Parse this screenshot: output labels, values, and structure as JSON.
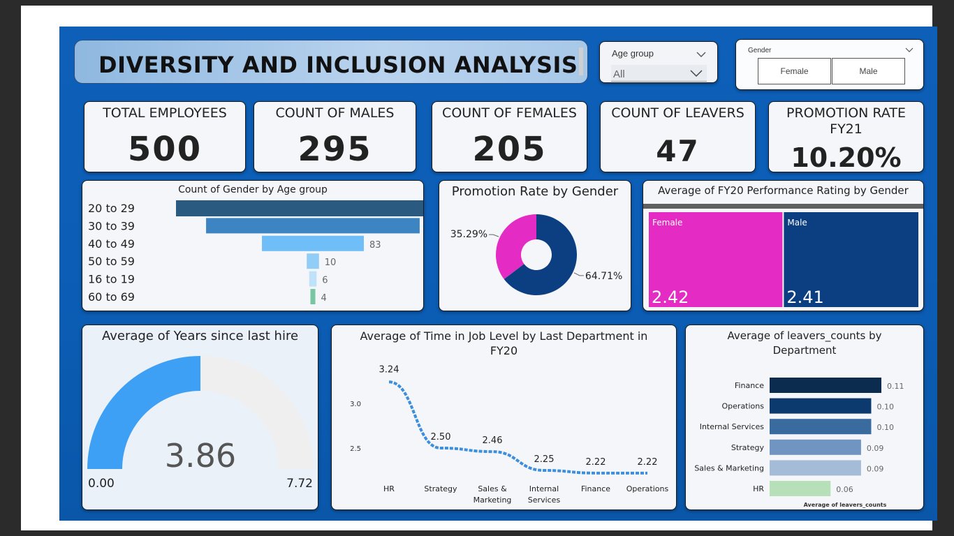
{
  "header": {
    "title": "DIVERSITY AND INCLUSION ANALYSIS"
  },
  "filters": {
    "age_group": {
      "label": "Age group",
      "value": "All"
    },
    "gender": {
      "label": "Gender",
      "options": [
        "Female",
        "Male"
      ]
    }
  },
  "kpis": {
    "total_employees": {
      "title": "TOTAL EMPLOYEES",
      "value": "500"
    },
    "count_males": {
      "title": "COUNT OF MALES",
      "value": "295"
    },
    "count_females": {
      "title": "COUNT OF FEMALES",
      "value": "205"
    },
    "count_leavers": {
      "title": "COUNT OF LEAVERS",
      "value": "47"
    },
    "promotion_rate": {
      "title_line1": "PROMOTION RATE",
      "title_line2": "FY21",
      "value": "10.20%"
    }
  },
  "colors": {
    "background": "#0b5db5",
    "female": "#e42bc3",
    "male": "#0b3f82",
    "gauge_fill": "#3da0f5",
    "gauge_track": "#efefef"
  },
  "chart_data": [
    {
      "type": "bar",
      "orientation": "horizontal-funnel",
      "title": "Count of Gender by Age group",
      "categories": [
        "20 to 29",
        "30 to 39",
        "40 to 49",
        "50 to 59",
        "16 to 19",
        "60 to 69"
      ],
      "values": [
        223,
        174,
        83,
        10,
        6,
        4
      ],
      "value_labels": [
        "",
        "174",
        "83",
        "10",
        "6",
        "4"
      ],
      "colors": [
        "#2b5a80",
        "#3d85c2",
        "#6fbef7",
        "#91cdf7",
        "#bfe1fa",
        "#79c6a3"
      ]
    },
    {
      "type": "pie",
      "variant": "donut",
      "title": "Promotion Rate by Gender",
      "categories": [
        "Female",
        "Male"
      ],
      "values": [
        35.29,
        64.71
      ],
      "labels": [
        "35.29%",
        "64.71%"
      ],
      "colors": [
        "#e42bc3",
        "#0b3f82"
      ]
    },
    {
      "type": "heatmap",
      "variant": "treemap",
      "title": "Average of FY20 Performance Rating by Gender",
      "categories": [
        "Female",
        "Male"
      ],
      "values": [
        2.42,
        2.41
      ],
      "colors": [
        "#e42bc3",
        "#0b3f82"
      ]
    },
    {
      "type": "gauge",
      "title": "Average of Years since last hire",
      "value": 3.86,
      "value_label": "3.86",
      "min": 0,
      "max": 7.72,
      "min_label": "0.00",
      "max_label": "7.72"
    },
    {
      "type": "line",
      "title": "Average of Time in Job Level by Last Department in FY20",
      "categories": [
        "HR",
        "Strategy",
        "Sales & Marketing",
        "Internal Services",
        "Finance",
        "Operations"
      ],
      "category_lines": [
        [
          "HR"
        ],
        [
          "Strategy"
        ],
        [
          "Sales &",
          "Marketing"
        ],
        [
          "Internal",
          "Services"
        ],
        [
          "Finance"
        ],
        [
          "Operations"
        ]
      ],
      "values": [
        3.24,
        2.5,
        2.46,
        2.25,
        2.22,
        2.22
      ],
      "value_labels": [
        "3.24",
        "2.50",
        "2.46",
        "2.25",
        "2.22",
        "2.22"
      ],
      "yticks": [
        "3.0",
        "2.5"
      ],
      "ytick_values": [
        3.0,
        2.5
      ],
      "ylim": [
        2.22,
        3.24
      ],
      "color": "#3d8fdb"
    },
    {
      "type": "bar",
      "orientation": "horizontal",
      "title": "Average of leavers_counts by Department",
      "categories": [
        "Finance",
        "Operations",
        "Internal Services",
        "Strategy",
        "Sales & Marketing",
        "HR"
      ],
      "values": [
        0.11,
        0.1,
        0.1,
        0.09,
        0.09,
        0.06
      ],
      "value_labels": [
        "0.11",
        "0.10",
        "0.10",
        "0.09",
        "0.09",
        "0.06"
      ],
      "xlabel": "Average of leavers_counts",
      "colors": [
        "#0b2b4f",
        "#0d3a6e",
        "#3a6b9e",
        "#7095c0",
        "#a5bcd8",
        "#b7e0b8"
      ]
    }
  ]
}
